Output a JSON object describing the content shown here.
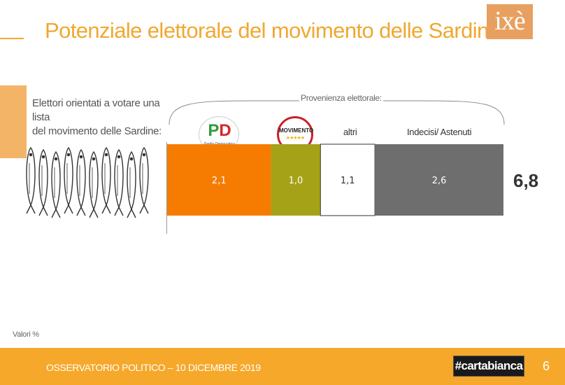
{
  "header": {
    "title": "Potenziale elettorale del movimento delle Sardine",
    "logo_text": "ixè"
  },
  "intro": {
    "line1": "Elettori orientati a votare una lista",
    "line2": "del movimento delle Sardine:"
  },
  "provenance_label": "Provenienza elettorale:",
  "logos": {
    "pd_letter_p": "P",
    "pd_letter_d": "D",
    "pd_subtitle": "Partito Democratico",
    "m5s_word": "MOVIMENTO",
    "m5s_stars": "★★★★★"
  },
  "chart_data": {
    "type": "bar",
    "orientation": "horizontal-stacked",
    "categories": [
      "PD",
      "Movimento 5 Stelle",
      "altri",
      "Indecisi/ Astenuti"
    ],
    "values": [
      2.1,
      1.0,
      1.1,
      2.6
    ],
    "value_labels": [
      "2,1",
      "1,0",
      "1,1",
      "2,6"
    ],
    "header_labels": [
      "",
      "",
      "altri",
      "Indecisi/ Astenuti"
    ],
    "total": 6.8,
    "total_label": "6,8",
    "colors": [
      "#f57c00",
      "#a6a218",
      "#ffffff",
      "#6e6e6e"
    ],
    "value_label_colors": [
      "#ffffff",
      "#ffffff",
      "#333333",
      "#ffffff"
    ],
    "title": "",
    "xlabel": "",
    "ylabel": ""
  },
  "note": "Valori %",
  "footer": {
    "text": "OSSERVATORIO POLITICO – 10 DICEMBRE 2019",
    "badge": "#cartabianca",
    "page_number": "6"
  }
}
